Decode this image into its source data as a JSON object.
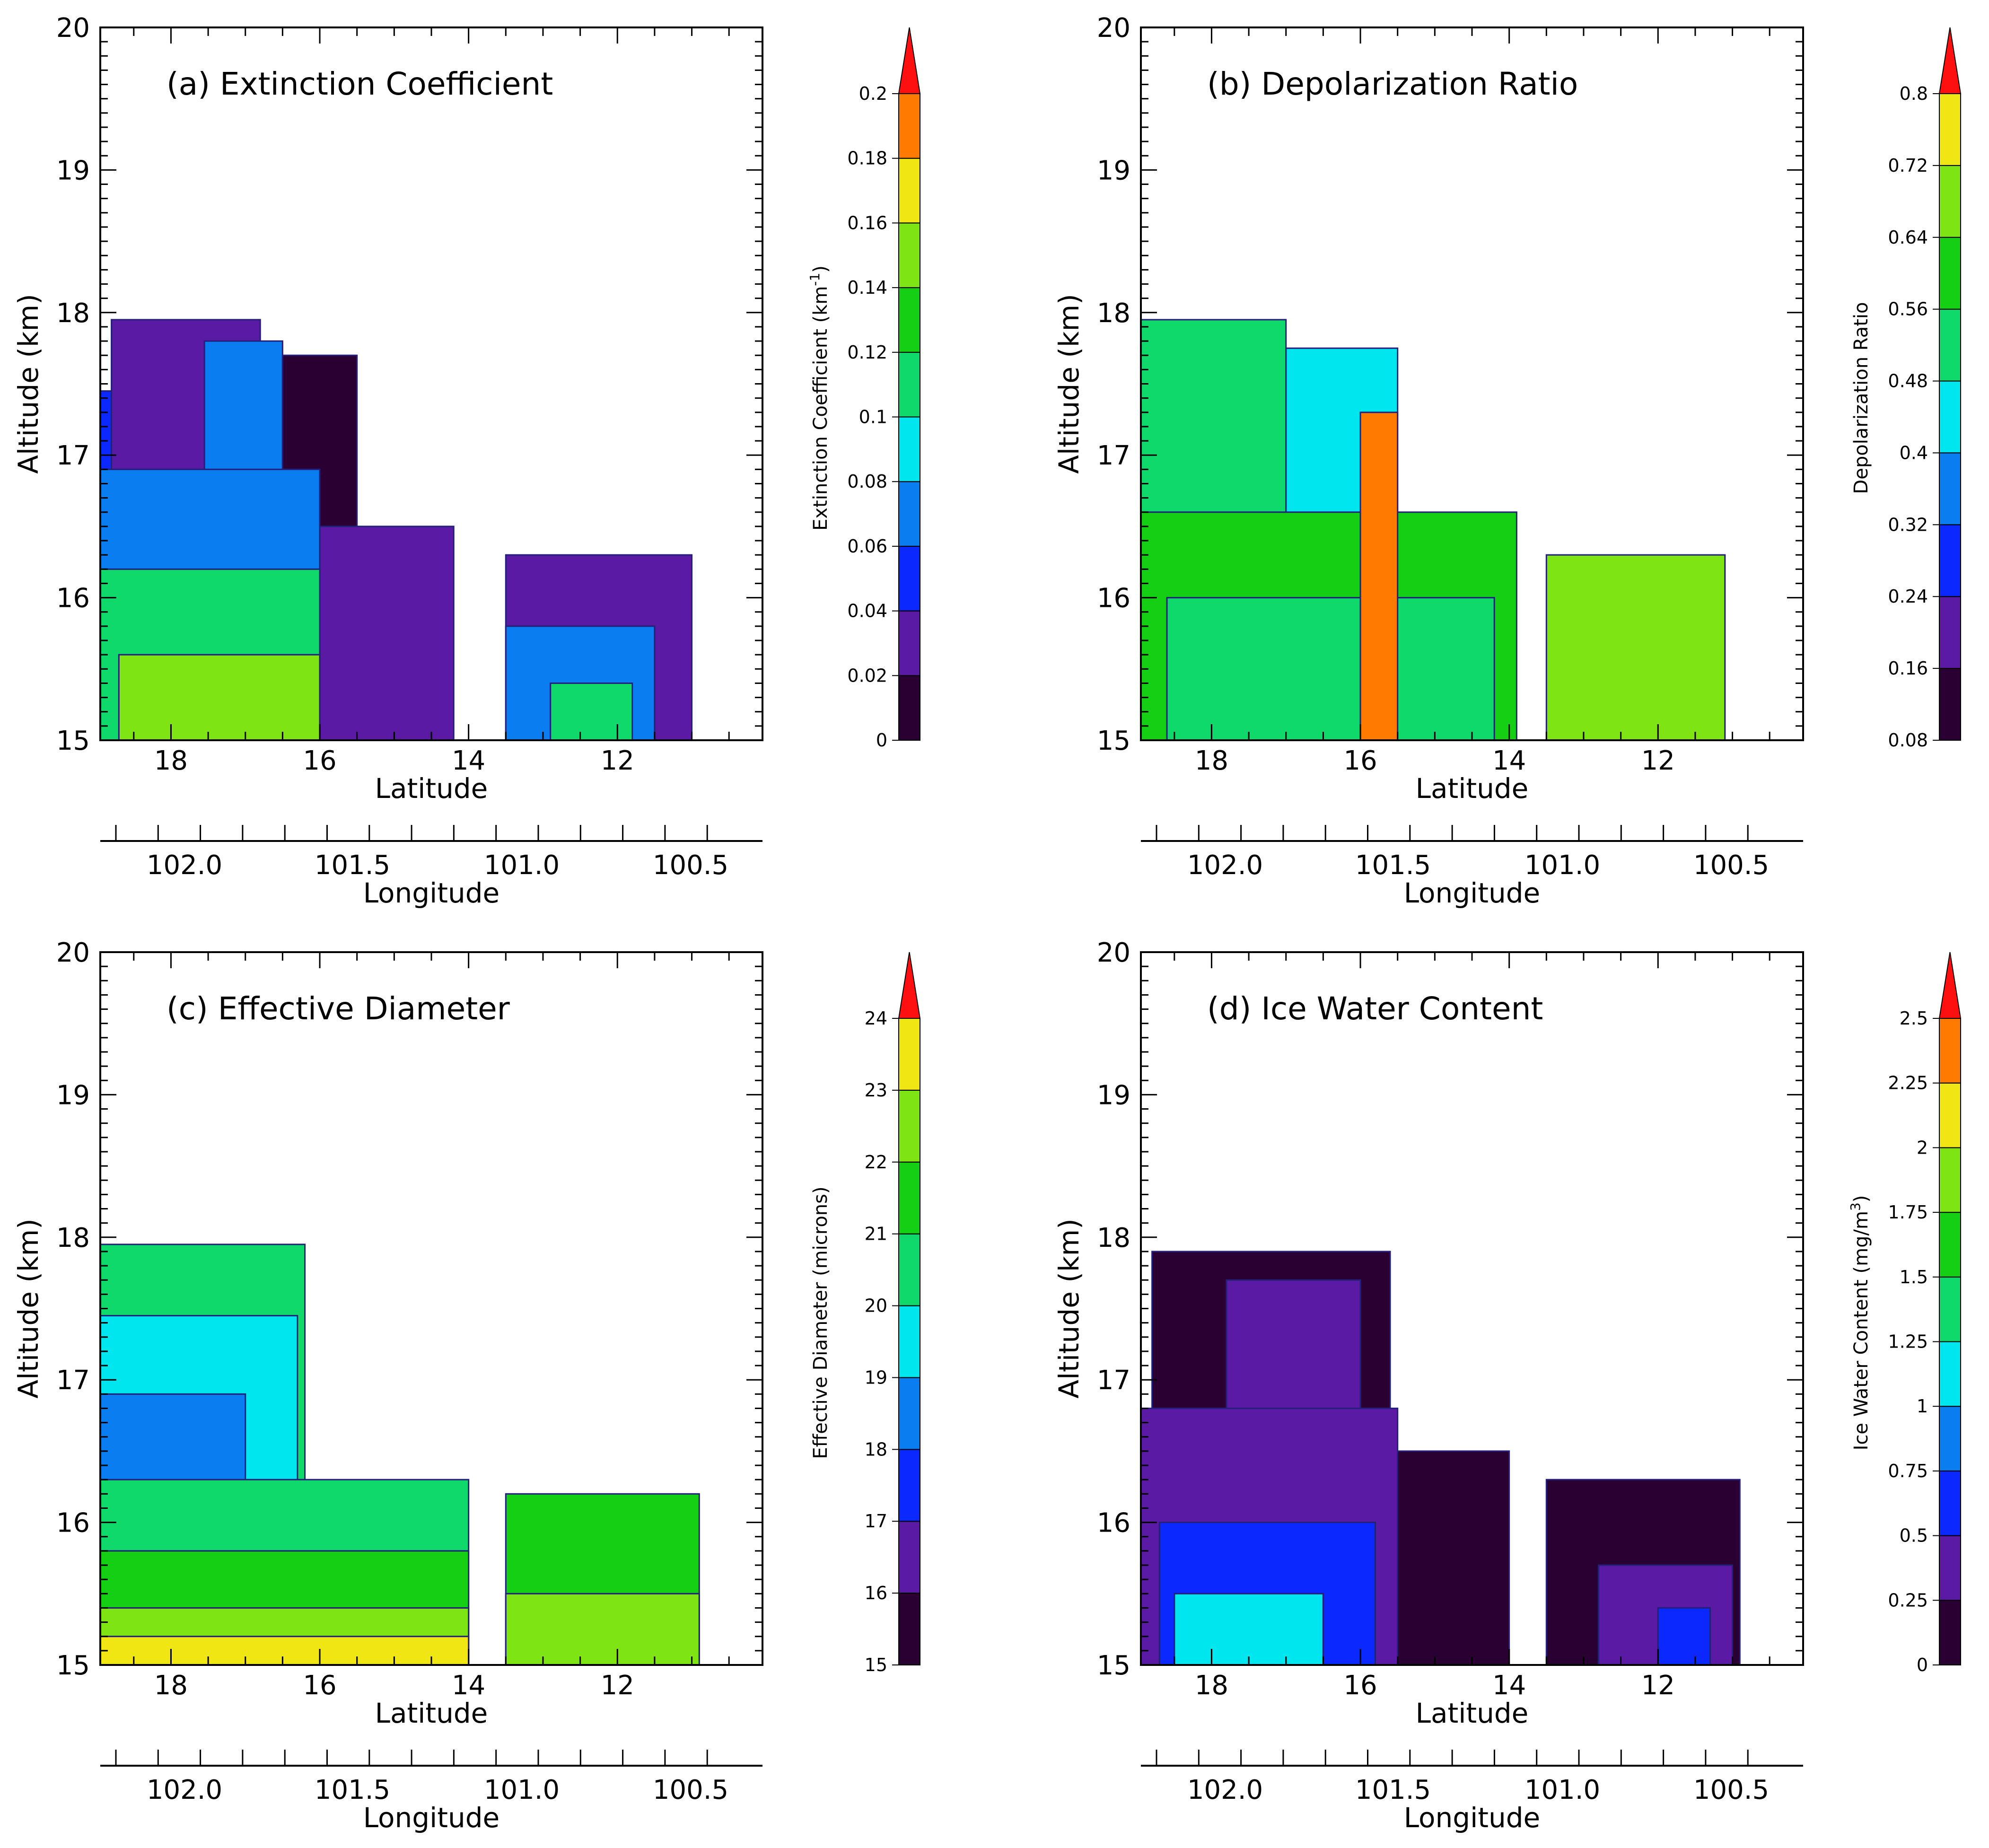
{
  "chart_data": [
    {
      "type": "heatmap",
      "title": "(a) Extinction Coefficient",
      "xlabel": "Latitude",
      "x2label": "Longitude",
      "ylabel": "Altitude (km)",
      "xlim": [
        18.95,
        10.05
      ],
      "ylim": [
        15,
        20
      ],
      "xticks": [
        18,
        16,
        14,
        12
      ],
      "x2ticks": [
        "102.0",
        "101.5",
        "101.0",
        "100.5"
      ],
      "yticks": [
        15,
        16,
        17,
        18,
        19,
        20
      ],
      "colorbar": {
        "label": "Extinction Coefficient (km",
        "label_sup": "-1",
        "label_end": ")",
        "ticks": [
          "0",
          "0.02",
          "0.04",
          "0.06",
          "0.08",
          "0.1",
          "0.12",
          "0.14",
          "0.16",
          "0.18",
          "0.2"
        ],
        "extend": "max"
      },
      "regions": [
        {
          "lat": [
            18.95,
            16.9
          ],
          "top": 17.45,
          "level": 2
        },
        {
          "lat": [
            18.8,
            16.8
          ],
          "top": 17.95,
          "level": 1
        },
        {
          "lat": [
            17.55,
            16.5
          ],
          "top": 17.8,
          "level": 3
        },
        {
          "lat": [
            16.5,
            15.5
          ],
          "top": 17.7,
          "level": 0
        },
        {
          "lat": [
            16.9,
            14.2
          ],
          "top": 16.5,
          "level": 1
        },
        {
          "lat": [
            18.95,
            16.0
          ],
          "top": 16.9,
          "level": 3
        },
        {
          "lat": [
            18.95,
            16.0
          ],
          "top": 16.2,
          "level": 5
        },
        {
          "lat": [
            18.7,
            16.0
          ],
          "top": 15.6,
          "level": 7
        },
        {
          "lat": [
            13.5,
            11.0
          ],
          "top": 16.3,
          "level": 1
        },
        {
          "lat": [
            13.5,
            11.5
          ],
          "top": 15.8,
          "level": 3
        },
        {
          "lat": [
            12.9,
            11.8
          ],
          "top": 15.4,
          "level": 5
        }
      ]
    },
    {
      "type": "heatmap",
      "title": "(b) Depolarization Ratio",
      "xlabel": "Latitude",
      "x2label": "Longitude",
      "ylabel": "Altitude (km)",
      "xlim": [
        18.95,
        10.05
      ],
      "ylim": [
        15,
        20
      ],
      "xticks": [
        18,
        16,
        14,
        12
      ],
      "x2ticks": [
        "102.0",
        "101.5",
        "101.0",
        "100.5"
      ],
      "yticks": [
        15,
        16,
        17,
        18,
        19,
        20
      ],
      "colorbar": {
        "label": "Depolarization Ratio",
        "label_sup": "",
        "label_end": "",
        "ticks": [
          "0.08",
          "0.16",
          "0.24",
          "0.32",
          "0.4",
          "0.48",
          "0.56",
          "0.64",
          "0.72",
          "0.8"
        ],
        "extend": "max"
      },
      "regions": [
        {
          "lat": [
            18.95,
            17.0
          ],
          "top": 17.95,
          "level": 5
        },
        {
          "lat": [
            17.0,
            15.5
          ],
          "top": 17.75,
          "level": 4
        },
        {
          "lat": [
            18.95,
            13.9
          ],
          "top": 16.6,
          "level": 6
        },
        {
          "lat": [
            18.6,
            14.2
          ],
          "top": 16.0,
          "level": 5
        },
        {
          "lat": [
            13.5,
            11.1
          ],
          "top": 16.3,
          "level": 7
        },
        {
          "lat": [
            16.0,
            15.5
          ],
          "top": 17.3,
          "level": 9
        }
      ]
    },
    {
      "type": "heatmap",
      "title": "(c) Effective Diameter",
      "xlabel": "Latitude",
      "x2label": "Longitude",
      "ylabel": "Altitude (km)",
      "xlim": [
        18.95,
        10.05
      ],
      "ylim": [
        15,
        20
      ],
      "xticks": [
        18,
        16,
        14,
        12
      ],
      "x2ticks": [
        "102.0",
        "101.5",
        "101.0",
        "100.5"
      ],
      "yticks": [
        15,
        16,
        17,
        18,
        19,
        20
      ],
      "colorbar": {
        "label": "Effective Diameter (microns)",
        "label_sup": "",
        "label_end": "",
        "ticks": [
          "15",
          "16",
          "17",
          "18",
          "19",
          "20",
          "21",
          "22",
          "23",
          "24"
        ],
        "extend": "max"
      },
      "regions": [
        {
          "lat": [
            18.95,
            16.2
          ],
          "top": 17.95,
          "level": 5
        },
        {
          "lat": [
            18.95,
            16.3
          ],
          "top": 17.45,
          "level": 4
        },
        {
          "lat": [
            18.95,
            17.0
          ],
          "top": 16.9,
          "level": 3
        },
        {
          "lat": [
            18.95,
            14.0
          ],
          "top": 16.3,
          "level": 5
        },
        {
          "lat": [
            18.95,
            14.0
          ],
          "top": 15.8,
          "level": 6
        },
        {
          "lat": [
            18.95,
            14.0
          ],
          "top": 15.4,
          "level": 7
        },
        {
          "lat": [
            18.95,
            14.0
          ],
          "top": 15.2,
          "level": 8
        },
        {
          "lat": [
            13.5,
            10.9
          ],
          "top": 16.2,
          "level": 6
        },
        {
          "lat": [
            13.5,
            10.9
          ],
          "top": 15.5,
          "level": 7
        }
      ]
    },
    {
      "type": "heatmap",
      "title": "(d) Ice Water Content",
      "xlabel": "Latitude",
      "x2label": "Longitude",
      "ylabel": "Altitude (km)",
      "xlim": [
        18.95,
        10.05
      ],
      "ylim": [
        15,
        20
      ],
      "xticks": [
        18,
        16,
        14,
        12
      ],
      "x2ticks": [
        "102.0",
        "101.5",
        "101.0",
        "100.5"
      ],
      "yticks": [
        15,
        16,
        17,
        18,
        19,
        20
      ],
      "colorbar": {
        "label": "Ice Water Content (mg/m",
        "label_sup": "3",
        "label_end": ")",
        "ticks": [
          "0",
          "0.25",
          "0.5",
          "0.75",
          "1",
          "1.25",
          "1.5",
          "1.75",
          "2",
          "2.25",
          "2.5"
        ],
        "extend": "max"
      },
      "regions": [
        {
          "lat": [
            18.95,
            14.0
          ],
          "top": 16.5,
          "level": 0
        },
        {
          "lat": [
            18.8,
            15.6
          ],
          "top": 17.9,
          "level": 0
        },
        {
          "lat": [
            17.8,
            16.0
          ],
          "top": 17.7,
          "level": 1
        },
        {
          "lat": [
            18.95,
            15.5
          ],
          "top": 16.8,
          "level": 1
        },
        {
          "lat": [
            18.7,
            15.8
          ],
          "top": 16.0,
          "level": 2
        },
        {
          "lat": [
            18.5,
            16.5
          ],
          "top": 15.5,
          "level": 4
        },
        {
          "lat": [
            13.5,
            10.9
          ],
          "top": 16.3,
          "level": 0
        },
        {
          "lat": [
            12.8,
            11.0
          ],
          "top": 15.7,
          "level": 1
        },
        {
          "lat": [
            12.0,
            11.3
          ],
          "top": 15.4,
          "level": 2
        }
      ]
    }
  ],
  "colors": {
    "palette": [
      "#2a0033",
      "#5a1aa3",
      "#0a28ff",
      "#0a7df0",
      "#00e6ee",
      "#0fd96a",
      "#14cf14",
      "#7fe414",
      "#f0e614",
      "#ff7a00",
      "#ff1010"
    ],
    "outline": "#24207a"
  }
}
